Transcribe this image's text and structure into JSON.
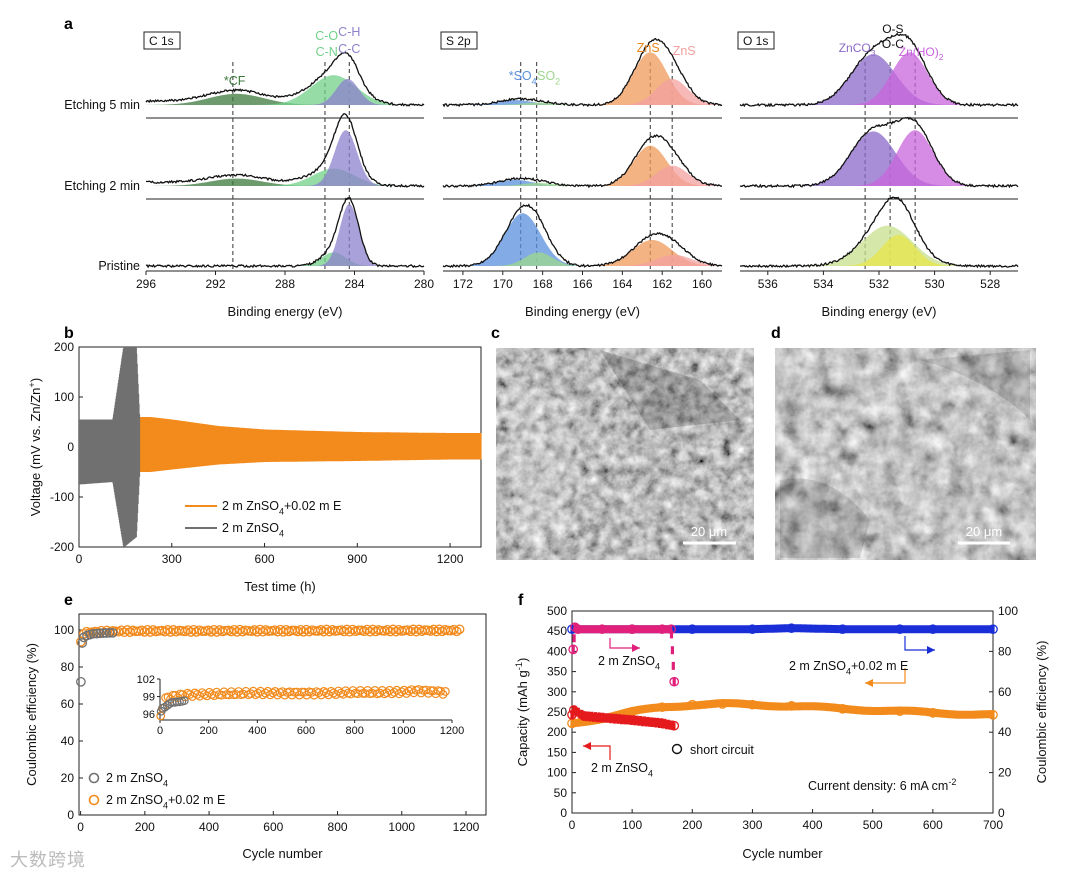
{
  "panels": {
    "a": "a",
    "b": "b",
    "c": "c",
    "d": "d",
    "e": "e",
    "f": "f"
  },
  "sem": {
    "c": {
      "scale": "20 μm"
    },
    "d": {
      "scale": "20 μm"
    }
  },
  "watermark": "大数跨境",
  "colors": {
    "cf": "#3c7a3c",
    "cn": "#72d08a",
    "ch": "#8c82cc",
    "so4": "#5a8fdc",
    "so2": "#9cd88c",
    "zns": "#ef9a5a",
    "zns2": "#f4a0a0",
    "znco3": "#8a68c8",
    "oc": "#c8e08c",
    "os": "#e6e64a",
    "znoh": "#c864dc",
    "orange": "#f28a1c",
    "gray": "#707070",
    "blue": "#1a2ed8",
    "red": "#e41a1c",
    "magenta": "#e0207a"
  },
  "chart_data": [
    {
      "id": "a-C1s",
      "type": "line",
      "title": "C 1s",
      "xlabel": "Binding energy (eV)",
      "ylabel": "",
      "xlim": [
        296,
        280
      ],
      "x_ticks": [
        296,
        292,
        288,
        284,
        280
      ],
      "row_labels": [
        "Etching 5 min",
        "Etching 2 min",
        "Pristine"
      ],
      "peak_labels": [
        {
          "text": "*CF",
          "at": 290.9
        },
        {
          "text": "C-O",
          "at": 285.6
        },
        {
          "text": "C-N",
          "at": 285.6
        },
        {
          "text": "C-H",
          "at": 284.3
        },
        {
          "text": "C-C",
          "at": 284.3
        }
      ],
      "dashed_lines": [
        291.0,
        285.7,
        284.3
      ],
      "rows": [
        {
          "name": "Etching 5 min",
          "background": 0.06,
          "components": [
            {
              "label": "*CF",
              "center": 290.8,
              "width": 1.6,
              "amp": 0.18,
              "color": "#3c7a3c"
            },
            {
              "label": "C-O/C-N",
              "center": 285.2,
              "width": 1.3,
              "amp": 0.48,
              "color": "#72d08a"
            },
            {
              "label": "C-H/C-C",
              "center": 284.4,
              "width": 0.65,
              "amp": 0.42,
              "color": "#8c82cc"
            }
          ]
        },
        {
          "name": "Etching 2 min",
          "background": 0.06,
          "components": [
            {
              "label": "*CF",
              "center": 290.8,
              "width": 1.5,
              "amp": 0.12,
              "color": "#3c7a3c"
            },
            {
              "label": "C-O/C-N",
              "center": 285.2,
              "width": 1.2,
              "amp": 0.28,
              "color": "#72d08a"
            },
            {
              "label": "C-H/C-C",
              "center": 284.5,
              "width": 0.65,
              "amp": 0.9,
              "color": "#8c82cc"
            }
          ]
        },
        {
          "name": "Pristine",
          "background": 0.0,
          "components": [
            {
              "label": "C-O/C-N",
              "center": 285.2,
              "width": 0.7,
              "amp": 0.22,
              "color": "#72d08a"
            },
            {
              "label": "C-H/C-C",
              "center": 284.3,
              "width": 0.55,
              "amp": 1.0,
              "color": "#8c82cc"
            }
          ]
        }
      ]
    },
    {
      "id": "a-S2p",
      "type": "line",
      "title": "S 2p",
      "xlabel": "Binding energy (eV)",
      "ylabel": "",
      "xlim": [
        173,
        159
      ],
      "x_ticks": [
        172,
        170,
        168,
        166,
        164,
        162,
        160
      ],
      "peak_labels": [
        {
          "text": "*SO4",
          "at": 169.0
        },
        {
          "text": "SO2",
          "at": 168.2
        },
        {
          "text": "ZnS",
          "at": 162.5
        },
        {
          "text": "ZnS",
          "at": 161.4
        }
      ],
      "dashed_lines": [
        169.1,
        168.3,
        162.6,
        161.5
      ],
      "rows": [
        {
          "name": "Etching 5 min",
          "background": 0.0,
          "components": [
            {
              "label": "SO4",
              "center": 169.4,
              "width": 0.9,
              "amp": 0.08,
              "color": "#5a8fdc"
            },
            {
              "label": "SO2",
              "center": 168.2,
              "width": 0.8,
              "amp": 0.04,
              "color": "#9cd88c"
            },
            {
              "label": "ZnS",
              "center": 162.6,
              "width": 0.85,
              "amp": 0.85,
              "color": "#ef9a5a"
            },
            {
              "label": "ZnS",
              "center": 161.5,
              "width": 0.8,
              "amp": 0.42,
              "color": "#f4a0a0"
            }
          ]
        },
        {
          "name": "Etching 2 min",
          "background": 0.0,
          "components": [
            {
              "label": "SO4",
              "center": 169.4,
              "width": 0.9,
              "amp": 0.1,
              "color": "#5a8fdc"
            },
            {
              "label": "SO2",
              "center": 168.2,
              "width": 0.8,
              "amp": 0.05,
              "color": "#9cd88c"
            },
            {
              "label": "ZnS",
              "center": 162.6,
              "width": 0.85,
              "amp": 0.65,
              "color": "#ef9a5a"
            },
            {
              "label": "ZnS",
              "center": 161.5,
              "width": 0.8,
              "amp": 0.33,
              "color": "#f4a0a0"
            }
          ]
        },
        {
          "name": "Pristine",
          "background": 0.0,
          "components": [
            {
              "label": "SO4",
              "center": 169.0,
              "width": 0.9,
              "amp": 0.85,
              "color": "#5a8fdc"
            },
            {
              "label": "SO2",
              "center": 168.2,
              "width": 0.7,
              "amp": 0.22,
              "color": "#9cd88c"
            },
            {
              "label": "ZnS",
              "center": 162.5,
              "width": 1.0,
              "amp": 0.42,
              "color": "#ef9a5a"
            },
            {
              "label": "ZnS",
              "center": 161.4,
              "width": 0.9,
              "amp": 0.18,
              "color": "#f4a0a0"
            }
          ]
        }
      ]
    },
    {
      "id": "a-O1s",
      "type": "line",
      "title": "O 1s",
      "xlabel": "Binding energy (eV)",
      "ylabel": "",
      "xlim": [
        537,
        527
      ],
      "x_ticks": [
        536,
        534,
        532,
        530,
        528
      ],
      "peak_labels": [
        {
          "text": "ZnCO3",
          "at": 532.5
        },
        {
          "text": "O-S",
          "at": 531.5
        },
        {
          "text": "O-C",
          "at": 531.5
        },
        {
          "text": "Zn(HO)2",
          "at": 530.7
        }
      ],
      "dashed_lines": [
        532.5,
        531.6,
        530.7
      ],
      "rows": [
        {
          "name": "Etching 5 min",
          "background": 0.0,
          "components": [
            {
              "label": "ZnCO3",
              "center": 532.2,
              "width": 0.8,
              "amp": 0.82,
              "color": "#8a68c8"
            },
            {
              "label": "Zn(HO)2",
              "center": 530.9,
              "width": 0.65,
              "amp": 0.85,
              "color": "#c864dc"
            }
          ]
        },
        {
          "name": "Etching 2 min",
          "background": 0.0,
          "components": [
            {
              "label": "ZnCO3",
              "center": 532.2,
              "width": 0.8,
              "amp": 0.88,
              "color": "#8a68c8"
            },
            {
              "label": "Zn(HO)2",
              "center": 530.7,
              "width": 0.65,
              "amp": 0.9,
              "color": "#c864dc"
            }
          ]
        },
        {
          "name": "Pristine",
          "background": 0.0,
          "components": [
            {
              "label": "O-C",
              "center": 531.7,
              "width": 0.9,
              "amp": 0.65,
              "color": "#c8e08c"
            },
            {
              "label": "O-S",
              "center": 531.3,
              "width": 0.6,
              "amp": 0.5,
              "color": "#e6e64a"
            }
          ]
        }
      ]
    },
    {
      "id": "b",
      "type": "line",
      "xlabel": "Test time (h)",
      "ylabel": "Voltage (mV vs. Zn/Zn+)",
      "xlim": [
        0,
        1300
      ],
      "ylim": [
        -200,
        200
      ],
      "x_ticks": [
        0,
        300,
        600,
        900,
        1200
      ],
      "y_ticks": [
        -200,
        -100,
        0,
        100,
        200
      ],
      "legend_position": "bottom-center",
      "series": [
        {
          "name": "2 m ZnSO4+0.02 m E",
          "color": "#f28a1c",
          "envelope": {
            "x": [
              200,
              230,
              300,
              450,
              600,
              900,
              1200,
              1300
            ],
            "upper": [
              60,
              60,
              55,
              42,
              35,
              30,
              28,
              28
            ],
            "lower": [
              -50,
              -50,
              -45,
              -35,
              -30,
              -28,
              -25,
              -25
            ]
          }
        },
        {
          "name": "2 m ZnSO4",
          "color": "#707070",
          "envelope": {
            "x": [
              0,
              110,
              145,
              185,
              200
            ],
            "upper": [
              55,
              55,
              200,
              200,
              0
            ],
            "lower": [
              -75,
              -70,
              -200,
              -180,
              0
            ]
          }
        }
      ]
    },
    {
      "id": "e",
      "type": "scatter",
      "xlabel": "Cycle number",
      "ylabel": "Coulombic efficiency (%)",
      "xlim": [
        0,
        1200
      ],
      "ylim": [
        0,
        100
      ],
      "x_ticks": [
        0,
        200,
        400,
        600,
        800,
        1000,
        1200
      ],
      "y_ticks": [
        0,
        20,
        40,
        60,
        80,
        100
      ],
      "legend_position": "bottom-left",
      "series": [
        {
          "name": "2 m ZnSO4",
          "color": "#707070",
          "x": [
            1,
            5,
            10,
            20,
            30,
            40,
            50,
            60,
            70,
            80,
            90,
            100
          ],
          "y": [
            72,
            93,
            96,
            97,
            97.5,
            98,
            98,
            98.2,
            98.3,
            98.4,
            98.5,
            98.5
          ]
        },
        {
          "name": "2 m ZnSO4+0.02 m E",
          "color": "#f28a1c",
          "x": [
            1,
            3,
            10,
            50,
            100,
            200,
            300,
            400,
            500,
            600,
            700,
            800,
            900,
            1000,
            1100,
            1180
          ],
          "y": [
            93,
            96,
            98.5,
            99,
            99.3,
            99.5,
            99.5,
            99.5,
            99.6,
            99.6,
            99.6,
            99.7,
            99.7,
            99.7,
            99.8,
            99.8
          ]
        }
      ],
      "inset": {
        "xlim": [
          0,
          1200
        ],
        "ylim": [
          95,
          102
        ],
        "x_ticks": [
          0,
          200,
          400,
          600,
          800,
          1000,
          1200
        ],
        "y_ticks": [
          96,
          99,
          102
        ],
        "series": [
          {
            "name": "2 m ZnSO4",
            "color": "#707070",
            "x": [
              5,
              10,
              20,
              30,
              40,
              50,
              60,
              70,
              80,
              90,
              100
            ],
            "y": [
              96.5,
              97,
              97.2,
              97.5,
              97.8,
              98,
              98,
              98.1,
              98.1,
              98.2,
              98.3
            ]
          },
          {
            "name": "2 m ZnSO4+0.02 m E",
            "color": "#f28a1c",
            "x": [
              1,
              5,
              20,
              50,
              100,
              200,
              300,
              400,
              500,
              600,
              700,
              800,
              900,
              1000,
              1050,
              1100,
              1150,
              1180
            ],
            "y": [
              95,
              96,
              98.6,
              99.0,
              99.3,
              99.4,
              99.5,
              99.6,
              99.6,
              99.6,
              99.6,
              99.7,
              99.7,
              99.8,
              100,
              99.9,
              99.8,
              99.6
            ]
          }
        ]
      }
    },
    {
      "id": "f",
      "type": "scatter",
      "xlabel": "Cycle number",
      "ylabel": "Capacity (mAh g-1)",
      "y2label": "Coulombic efficiency (%)",
      "xlim": [
        0,
        700
      ],
      "ylim": [
        0,
        500
      ],
      "y2lim": [
        0,
        100
      ],
      "x_ticks": [
        0,
        100,
        200,
        300,
        400,
        500,
        600,
        700
      ],
      "y_ticks": [
        0,
        50,
        100,
        150,
        200,
        250,
        300,
        350,
        400,
        450,
        500
      ],
      "y2_ticks": [
        0,
        20,
        40,
        60,
        80,
        100
      ],
      "annotations": [
        "2 m ZnSO4",
        "2 m ZnSO4+0.02 m E",
        "2 m ZnSO4",
        "short circuit",
        "Current density: 6 mA cm-2"
      ],
      "series": [
        {
          "name": "CE 2 m ZnSO4+0.02 m E",
          "axis": "right",
          "color": "#1a2ed8",
          "x": [
            0,
            100,
            200,
            300,
            365,
            450,
            545,
            600,
            700
          ],
          "y": [
            91,
            91,
            91,
            91,
            91.5,
            91,
            91,
            91,
            91
          ]
        },
        {
          "name": "CE 2 m ZnSO4",
          "axis": "right",
          "color": "#e0207a",
          "x": [
            2,
            5,
            10,
            50,
            100,
            150,
            165,
            170
          ],
          "y": [
            81,
            92,
            91,
            91,
            91,
            91,
            91,
            65
          ]
        },
        {
          "name": "Capacity 2 m ZnSO4+0.02 m E",
          "axis": "left",
          "color": "#f28a1c",
          "x": [
            0,
            50,
            100,
            150,
            200,
            250,
            300,
            365,
            450,
            545,
            600,
            700
          ],
          "y": [
            222,
            235,
            250,
            262,
            268,
            270,
            268,
            265,
            258,
            252,
            248,
            243
          ]
        },
        {
          "name": "Capacity 2 m ZnSO4",
          "axis": "left",
          "color": "#e41a1c",
          "x": [
            0,
            3,
            20,
            50,
            100,
            150,
            170
          ],
          "y": [
            243,
            255,
            240,
            236,
            230,
            222,
            216
          ]
        }
      ]
    }
  ]
}
